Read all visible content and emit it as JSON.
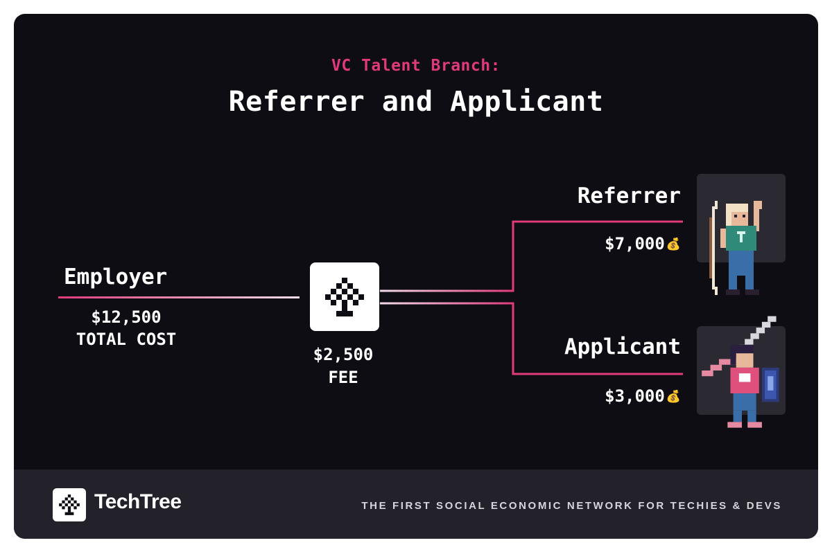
{
  "header": {
    "subtitle": "VC Talent Branch:",
    "title": "Referrer and Applicant"
  },
  "employer": {
    "label": "Employer",
    "amount": "$12,500",
    "caption": "TOTAL COST"
  },
  "hub": {
    "icon": "tree-icon",
    "amount": "$2,500",
    "caption": "FEE"
  },
  "referrer": {
    "label": "Referrer",
    "amount": "$7,000",
    "icon": "money-bag-icon"
  },
  "applicant": {
    "label": "Applicant",
    "amount": "$3,000",
    "icon": "money-bag-icon"
  },
  "footer": {
    "brand": "TechTree",
    "tagline": "THE FIRST SOCIAL ECONOMIC NETWORK FOR TECHIES & DEVS"
  },
  "colors": {
    "background": "#0f0d14",
    "footer": "#232129",
    "accent": "#e03a7c",
    "text": "#ffffff"
  }
}
